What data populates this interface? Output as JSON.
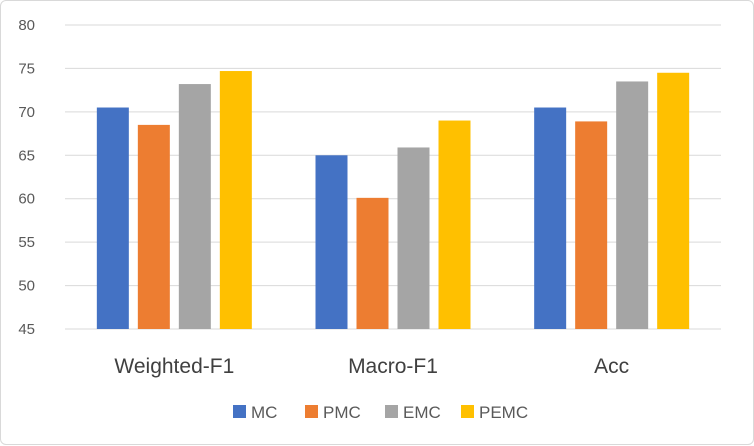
{
  "chart_data": {
    "type": "bar",
    "categories": [
      "Weighted-F1",
      "Macro-F1",
      "Acc"
    ],
    "series": [
      {
        "name": "MC",
        "values": [
          70.5,
          65.0,
          70.5
        ],
        "color": "#4472C4"
      },
      {
        "name": "PMC",
        "values": [
          68.5,
          60.1,
          68.9
        ],
        "color": "#ED7D31"
      },
      {
        "name": "EMC",
        "values": [
          73.2,
          65.9,
          73.5
        ],
        "color": "#A5A5A5"
      },
      {
        "name": "PEMC",
        "values": [
          74.7,
          69.0,
          74.5
        ],
        "color": "#FFC000"
      }
    ],
    "title": "",
    "xlabel": "",
    "ylabel": "",
    "ylim": [
      45,
      80
    ],
    "yticks": [
      45,
      50,
      55,
      60,
      65,
      70,
      75,
      80
    ],
    "grid": true,
    "legend": "bottom"
  }
}
